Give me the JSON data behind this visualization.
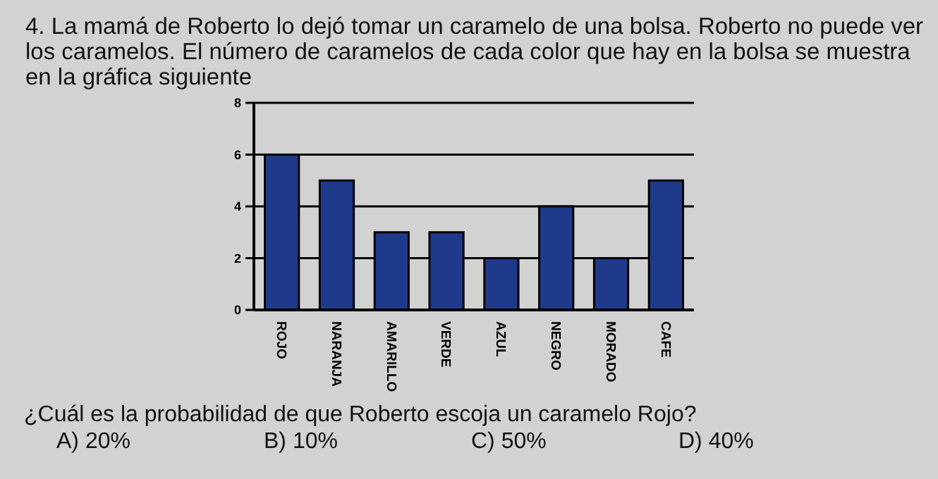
{
  "chart_data": {
    "type": "bar",
    "title": "4. La mamá de Roberto lo dejó tomar un caramelo de una bolsa. Roberto no puede ver los caramelos. El número de caramelos de cada color que hay en la bolsa se muestra en la gráfica siguiente",
    "categories": [
      "ROJO",
      "NARANJA",
      "AMARILLO",
      "VERDE",
      "AZUL",
      "NEGRO",
      "MORADO",
      "CAFE"
    ],
    "values": [
      6,
      5,
      3,
      3,
      2,
      4,
      2,
      5
    ],
    "color": "#1f3a8a",
    "ylim": [
      0,
      8
    ],
    "yticks": [
      0,
      2,
      4,
      6,
      8
    ],
    "grid": "y",
    "annotations": [
      "¿Cuál es la probabilidad de que Roberto escoja un caramelo Rojo?",
      "A) 20%",
      "B)  10%",
      "C) 50%",
      "D) 40%"
    ]
  }
}
